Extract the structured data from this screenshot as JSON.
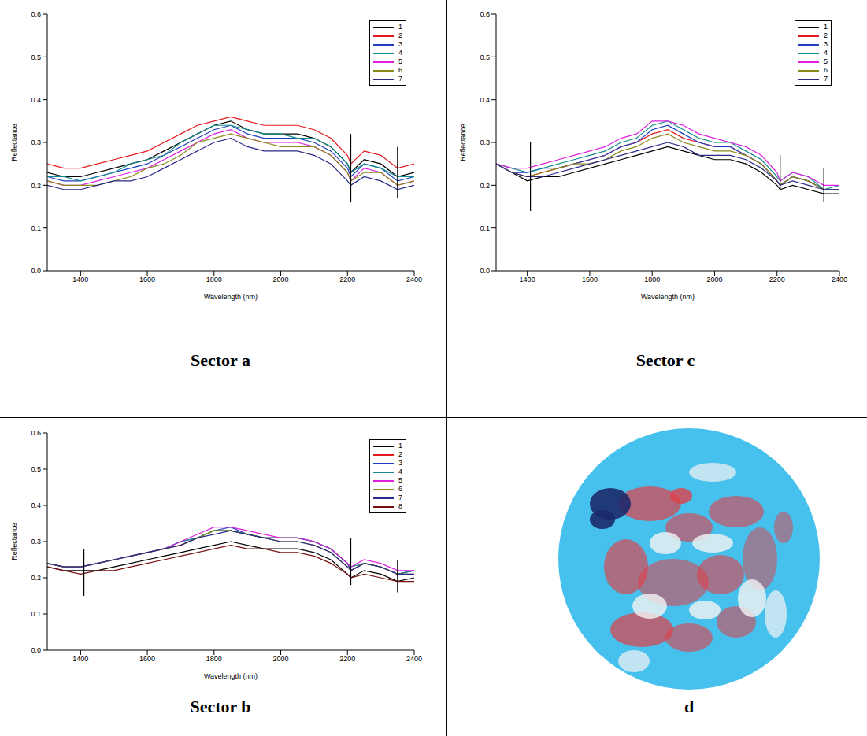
{
  "chart_data": [
    {
      "type": "line",
      "title": "Sector a",
      "x_label": "Wavelength (nm)",
      "y_label": "Reflectance",
      "xlim": [
        1300,
        2400
      ],
      "xticks": [
        1400,
        1600,
        1800,
        2000,
        2200,
        2400
      ],
      "ylim": [
        0,
        0.6
      ],
      "yticks": [
        {
          "value": 0,
          "label": "0.0"
        },
        0.1,
        0.2,
        0.3,
        0.4,
        0.5,
        0.6
      ],
      "grid": false,
      "legend": "upper right",
      "x": [
        1300,
        1350,
        1400,
        1450,
        1500,
        1550,
        1600,
        1650,
        1700,
        1750,
        1800,
        1850,
        1900,
        1950,
        2000,
        2050,
        2100,
        2150,
        2200,
        2210,
        2250,
        2300,
        2350,
        2400
      ],
      "series": [
        {
          "name": "1",
          "color": "#000000",
          "values": [
            0.23,
            0.22,
            0.22,
            0.23,
            0.24,
            0.25,
            0.26,
            0.28,
            0.3,
            0.32,
            0.34,
            0.35,
            0.33,
            0.32,
            0.32,
            0.32,
            0.31,
            0.29,
            0.25,
            0.23,
            0.26,
            0.25,
            0.22,
            0.23
          ]
        },
        {
          "name": "2",
          "color": "#e41a1c",
          "values": [
            0.25,
            0.24,
            0.24,
            0.25,
            0.26,
            0.27,
            0.28,
            0.3,
            0.32,
            0.34,
            0.35,
            0.36,
            0.35,
            0.34,
            0.34,
            0.34,
            0.33,
            0.31,
            0.27,
            0.25,
            0.28,
            0.27,
            0.24,
            0.25
          ]
        },
        {
          "name": "3",
          "color": "#1f3fbf",
          "values": [
            0.22,
            0.21,
            0.21,
            0.22,
            0.23,
            0.24,
            0.25,
            0.27,
            0.29,
            0.31,
            0.33,
            0.34,
            0.32,
            0.31,
            0.31,
            0.31,
            0.3,
            0.28,
            0.24,
            0.22,
            0.25,
            0.24,
            0.21,
            0.22
          ]
        },
        {
          "name": "4",
          "color": "#138d8d",
          "values": [
            0.22,
            0.22,
            0.21,
            0.22,
            0.23,
            0.25,
            0.26,
            0.27,
            0.3,
            0.32,
            0.34,
            0.34,
            0.33,
            0.32,
            0.32,
            0.31,
            0.31,
            0.29,
            0.25,
            0.23,
            0.25,
            0.24,
            0.22,
            0.22
          ]
        },
        {
          "name": "5",
          "color": "#e020e0",
          "values": [
            0.21,
            0.2,
            0.2,
            0.21,
            0.22,
            0.23,
            0.24,
            0.26,
            0.28,
            0.3,
            0.32,
            0.33,
            0.31,
            0.3,
            0.3,
            0.3,
            0.29,
            0.27,
            0.23,
            0.21,
            0.24,
            0.23,
            0.2,
            0.21
          ]
        },
        {
          "name": "6",
          "color": "#8a8a1a",
          "values": [
            0.21,
            0.2,
            0.2,
            0.2,
            0.21,
            0.22,
            0.24,
            0.25,
            0.27,
            0.3,
            0.31,
            0.32,
            0.31,
            0.3,
            0.29,
            0.29,
            0.29,
            0.27,
            0.23,
            0.21,
            0.23,
            0.23,
            0.2,
            0.21
          ]
        },
        {
          "name": "7",
          "color": "#2a2a8a",
          "values": [
            0.2,
            0.19,
            0.19,
            0.2,
            0.21,
            0.21,
            0.22,
            0.24,
            0.26,
            0.28,
            0.3,
            0.31,
            0.29,
            0.28,
            0.28,
            0.28,
            0.27,
            0.25,
            0.21,
            0.2,
            0.22,
            0.21,
            0.19,
            0.2
          ]
        }
      ],
      "reference_lines": [
        {
          "x": 2210,
          "ymin": 0.16,
          "ymax": 0.32
        },
        {
          "x": 2350,
          "ymin": 0.17,
          "ymax": 0.29
        }
      ]
    },
    {
      "type": "line",
      "title": "Sector c",
      "x_label": "Wavelength (nm)",
      "y_label": "Reflectance",
      "xlim": [
        1300,
        2400
      ],
      "xticks": [
        1400,
        1600,
        1800,
        2000,
        2200,
        2400
      ],
      "ylim": [
        0,
        0.6
      ],
      "yticks": [
        {
          "value": 0,
          "label": "0.0"
        },
        0.1,
        0.2,
        0.3,
        0.4,
        0.5,
        0.6
      ],
      "grid": false,
      "legend": "upper right",
      "x": [
        1300,
        1350,
        1400,
        1450,
        1500,
        1550,
        1600,
        1650,
        1700,
        1750,
        1800,
        1850,
        1900,
        1950,
        2000,
        2050,
        2100,
        2150,
        2200,
        2210,
        2250,
        2300,
        2350,
        2400
      ],
      "series": [
        {
          "name": "1",
          "color": "#000000",
          "values": [
            0.25,
            0.23,
            0.21,
            0.22,
            0.22,
            0.23,
            0.24,
            0.25,
            0.26,
            0.27,
            0.28,
            0.29,
            0.28,
            0.27,
            0.26,
            0.26,
            0.25,
            0.23,
            0.2,
            0.19,
            0.2,
            0.19,
            0.18,
            0.18
          ]
        },
        {
          "name": "2",
          "color": "#e41a1c",
          "values": [
            0.25,
            0.23,
            0.22,
            0.23,
            0.24,
            0.25,
            0.26,
            0.27,
            0.29,
            0.3,
            0.32,
            0.33,
            0.31,
            0.3,
            0.29,
            0.29,
            0.27,
            0.25,
            0.21,
            0.2,
            0.22,
            0.21,
            0.19,
            0.19
          ]
        },
        {
          "name": "3",
          "color": "#1f3fbf",
          "values": [
            0.25,
            0.23,
            0.23,
            0.24,
            0.24,
            0.25,
            0.26,
            0.27,
            0.29,
            0.3,
            0.33,
            0.34,
            0.32,
            0.3,
            0.29,
            0.29,
            0.27,
            0.25,
            0.21,
            0.2,
            0.22,
            0.21,
            0.19,
            0.19
          ]
        },
        {
          "name": "4",
          "color": "#138d8d",
          "values": [
            0.25,
            0.24,
            0.23,
            0.24,
            0.25,
            0.26,
            0.27,
            0.28,
            0.3,
            0.31,
            0.34,
            0.35,
            0.33,
            0.31,
            0.3,
            0.3,
            0.28,
            0.26,
            0.22,
            0.21,
            0.23,
            0.22,
            0.19,
            0.2
          ]
        },
        {
          "name": "5",
          "color": "#e020e0",
          "values": [
            0.25,
            0.24,
            0.24,
            0.25,
            0.26,
            0.27,
            0.28,
            0.29,
            0.31,
            0.32,
            0.35,
            0.35,
            0.34,
            0.32,
            0.31,
            0.3,
            0.29,
            0.27,
            0.23,
            0.21,
            0.23,
            0.22,
            0.2,
            0.2
          ]
        },
        {
          "name": "6",
          "color": "#8a8a1a",
          "values": [
            0.25,
            0.23,
            0.22,
            0.23,
            0.24,
            0.25,
            0.25,
            0.26,
            0.28,
            0.29,
            0.31,
            0.32,
            0.3,
            0.29,
            0.28,
            0.28,
            0.27,
            0.25,
            0.21,
            0.2,
            0.22,
            0.21,
            0.19,
            0.19
          ]
        },
        {
          "name": "7",
          "color": "#2a2a8a",
          "values": [
            0.25,
            0.23,
            0.22,
            0.22,
            0.23,
            0.24,
            0.25,
            0.26,
            0.27,
            0.28,
            0.29,
            0.3,
            0.29,
            0.27,
            0.27,
            0.27,
            0.26,
            0.24,
            0.21,
            0.2,
            0.21,
            0.2,
            0.19,
            0.19
          ]
        }
      ],
      "reference_lines": [
        {
          "x": 1410,
          "ymin": 0.14,
          "ymax": 0.3
        },
        {
          "x": 2210,
          "ymin": 0.19,
          "ymax": 0.27
        },
        {
          "x": 2350,
          "ymin": 0.16,
          "ymax": 0.24
        }
      ]
    },
    {
      "type": "line",
      "title": "Sector b",
      "x_label": "Wavelength (nm)",
      "y_label": "Reflectance",
      "xlim": [
        1300,
        2400
      ],
      "xticks": [
        1400,
        1600,
        1800,
        2000,
        2200,
        2400
      ],
      "ylim": [
        0,
        0.6
      ],
      "yticks": [
        {
          "value": 0,
          "label": "0.0"
        },
        0.1,
        0.2,
        0.3,
        0.4,
        0.5,
        0.6
      ],
      "grid": false,
      "legend": "upper right",
      "x": [
        1300,
        1350,
        1400,
        1450,
        1500,
        1550,
        1600,
        1650,
        1700,
        1750,
        1800,
        1850,
        1900,
        1950,
        2000,
        2050,
        2100,
        2150,
        2200,
        2210,
        2250,
        2300,
        2350,
        2400
      ],
      "series": [
        {
          "name": "1",
          "color": "#000000",
          "values": [
            0.23,
            0.22,
            0.22,
            0.22,
            0.23,
            0.24,
            0.25,
            0.26,
            0.27,
            0.28,
            0.29,
            0.3,
            0.29,
            0.28,
            0.28,
            0.28,
            0.27,
            0.25,
            0.21,
            0.2,
            0.22,
            0.21,
            0.19,
            0.2
          ]
        },
        {
          "name": "2",
          "color": "#e41a1c",
          "values": [
            0.24,
            0.23,
            0.23,
            0.24,
            0.25,
            0.26,
            0.27,
            0.28,
            0.29,
            0.31,
            0.33,
            0.33,
            0.32,
            0.31,
            0.31,
            0.31,
            0.3,
            0.28,
            0.24,
            0.22,
            0.24,
            0.23,
            0.21,
            0.22
          ]
        },
        {
          "name": "3",
          "color": "#1f3fbf",
          "values": [
            0.24,
            0.23,
            0.23,
            0.24,
            0.25,
            0.26,
            0.27,
            0.28,
            0.3,
            0.31,
            0.33,
            0.34,
            0.32,
            0.31,
            0.31,
            0.31,
            0.3,
            0.28,
            0.24,
            0.22,
            0.24,
            0.23,
            0.21,
            0.22
          ]
        },
        {
          "name": "4",
          "color": "#138d8d",
          "values": [
            0.24,
            0.23,
            0.23,
            0.24,
            0.25,
            0.26,
            0.27,
            0.28,
            0.3,
            0.31,
            0.33,
            0.33,
            0.32,
            0.31,
            0.31,
            0.31,
            0.3,
            0.28,
            0.24,
            0.23,
            0.24,
            0.23,
            0.21,
            0.22
          ]
        },
        {
          "name": "5",
          "color": "#e020e0",
          "values": [
            0.24,
            0.23,
            0.23,
            0.24,
            0.25,
            0.26,
            0.27,
            0.28,
            0.3,
            0.32,
            0.34,
            0.34,
            0.33,
            0.32,
            0.31,
            0.31,
            0.3,
            0.28,
            0.24,
            0.23,
            0.25,
            0.24,
            0.22,
            0.22
          ]
        },
        {
          "name": "6",
          "color": "#8a8a1a",
          "values": [
            0.24,
            0.23,
            0.23,
            0.24,
            0.25,
            0.26,
            0.27,
            0.28,
            0.29,
            0.31,
            0.33,
            0.33,
            0.32,
            0.31,
            0.3,
            0.3,
            0.29,
            0.27,
            0.23,
            0.22,
            0.24,
            0.23,
            0.21,
            0.21
          ]
        },
        {
          "name": "7",
          "color": "#2a2a8a",
          "values": [
            0.24,
            0.23,
            0.23,
            0.24,
            0.25,
            0.26,
            0.27,
            0.28,
            0.29,
            0.31,
            0.32,
            0.33,
            0.32,
            0.31,
            0.3,
            0.3,
            0.29,
            0.27,
            0.23,
            0.22,
            0.24,
            0.23,
            0.21,
            0.21
          ]
        },
        {
          "name": "8",
          "color": "#7a1010",
          "values": [
            0.23,
            0.22,
            0.21,
            0.22,
            0.22,
            0.23,
            0.24,
            0.25,
            0.26,
            0.27,
            0.28,
            0.29,
            0.28,
            0.28,
            0.27,
            0.27,
            0.26,
            0.24,
            0.21,
            0.2,
            0.21,
            0.2,
            0.19,
            0.19
          ]
        }
      ],
      "reference_lines": [
        {
          "x": 1410,
          "ymin": 0.15,
          "ymax": 0.28
        },
        {
          "x": 2210,
          "ymin": 0.18,
          "ymax": 0.31
        },
        {
          "x": 2350,
          "ymin": 0.16,
          "ymax": 0.25
        }
      ]
    }
  ],
  "image": {
    "label": "d"
  }
}
